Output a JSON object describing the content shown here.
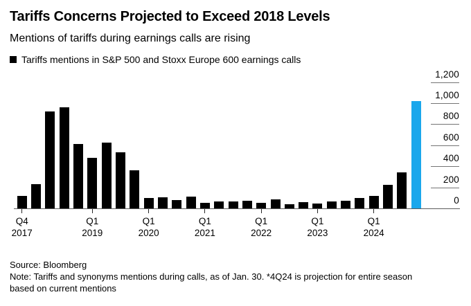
{
  "chart_data": {
    "type": "bar",
    "title": "Tariffs Concerns Projected to Exceed 2018 Levels",
    "subtitle": "Mentions of tariffs during earnings calls are rising",
    "legend": [
      "Tariffs mentions in S&P 500 and Stoxx Europe 600 earnings calls"
    ],
    "categories": [
      "4Q17",
      "1Q18",
      "2Q18",
      "3Q18",
      "4Q18",
      "1Q19",
      "2Q19",
      "3Q19",
      "4Q19",
      "1Q20",
      "2Q20",
      "3Q20",
      "4Q20",
      "1Q21",
      "2Q21",
      "3Q21",
      "4Q21",
      "1Q22",
      "2Q22",
      "3Q22",
      "4Q22",
      "1Q23",
      "2Q23",
      "3Q23",
      "4Q23",
      "1Q24",
      "2Q24",
      "3Q24",
      "4Q24*"
    ],
    "values": [
      120,
      230,
      920,
      960,
      610,
      480,
      625,
      530,
      365,
      100,
      105,
      80,
      110,
      50,
      65,
      65,
      70,
      55,
      85,
      40,
      60,
      45,
      65,
      75,
      100,
      120,
      225,
      345,
      1020
    ],
    "bar_color": "#000000",
    "highlight": {
      "index": 28,
      "color": "#1aa7ec",
      "meaning": "4Q24 projection for entire season"
    },
    "xlabel": "",
    "ylabel": "",
    "ylim": [
      0,
      1200
    ],
    "grid": "right-side tick segments only",
    "y_axis": {
      "side": "right",
      "tick_values": [
        0,
        200,
        400,
        600,
        800,
        1000,
        1200
      ],
      "tick_labels": [
        "0",
        "200",
        "400",
        "600",
        "800",
        "1,000",
        "1,200"
      ]
    },
    "x_axis": {
      "ticks": [
        {
          "label_line1": "Q4",
          "label_line2": "2017",
          "bar_index": 0
        },
        {
          "label_line1": "Q1",
          "label_line2": "2019",
          "bar_index": 5
        },
        {
          "label_line1": "Q1",
          "label_line2": "2020",
          "bar_index": 9
        },
        {
          "label_line1": "Q1",
          "label_line2": "2021",
          "bar_index": 13
        },
        {
          "label_line1": "Q1",
          "label_line2": "2022",
          "bar_index": 17
        },
        {
          "label_line1": "Q1",
          "label_line2": "2023",
          "bar_index": 21
        },
        {
          "label_line1": "Q1",
          "label_line2": "2024",
          "bar_index": 25
        }
      ]
    }
  },
  "footer": {
    "source": "Source: Bloomberg",
    "note_line1": "Note: Tariffs and synonyms mentions during calls, as of Jan. 30. *4Q24 is projection for entire season",
    "note_line2": "based on current mentions"
  }
}
